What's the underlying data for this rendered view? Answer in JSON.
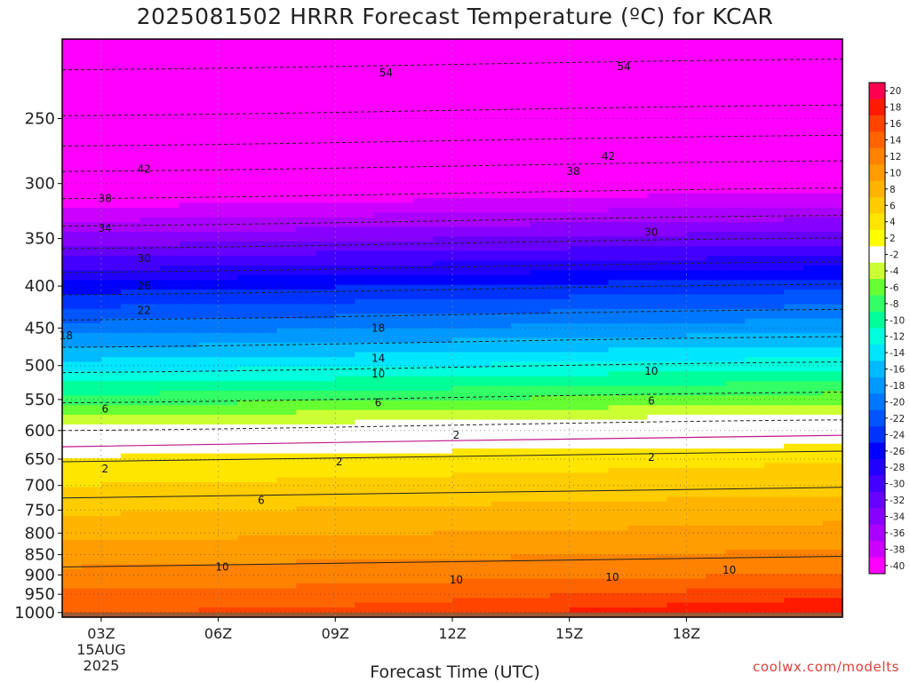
{
  "chart_data": {
    "type": "heatmap",
    "title": "2025081502 HRRR Forecast Temperature (ºC) for KCAR",
    "xlabel": "Forecast Time (UTC)",
    "ylabel": "",
    "x_ticks": [
      "03Z",
      "06Z",
      "09Z",
      "12Z",
      "15Z",
      "18Z"
    ],
    "x_tick_sublabel": [
      "15AUG",
      "2025"
    ],
    "y_axis": {
      "scale": "log",
      "reversed": true,
      "range": [
        200,
        1013
      ],
      "ticks": [
        250,
        300,
        350,
        400,
        450,
        500,
        550,
        600,
        650,
        700,
        750,
        800,
        850,
        900,
        950,
        1000
      ]
    },
    "colorbar_labels": [
      "20",
      "18",
      "16",
      "14",
      "12",
      "10",
      "8",
      "6",
      "4",
      "2",
      "-2",
      "-4",
      "-6",
      "-8",
      "-10",
      "-12",
      "-14",
      "-16",
      "-18",
      "-20",
      "-22",
      "-24",
      "-26",
      "-28",
      "-30",
      "-32",
      "-34",
      "-36",
      "-38",
      "-40"
    ],
    "colorbar_colors": [
      "#ff0050",
      "#ff1a00",
      "#ff4400",
      "#ff6400",
      "#ff8200",
      "#ff9c00",
      "#ffb400",
      "#ffcc00",
      "#ffe600",
      "#ffff00",
      "#ffffff",
      "#ccff33",
      "#66ff33",
      "#33ff66",
      "#00ff99",
      "#00ffdd",
      "#00e6ff",
      "#00bbff",
      "#0099ff",
      "#0077ff",
      "#0055ff",
      "#0033ff",
      "#0000ff",
      "#2200ff",
      "#4400ff",
      "#6600ff",
      "#8800ff",
      "#aa00ff",
      "#cc00ff",
      "#ff00ff"
    ],
    "contour_labels": [
      {
        "text": "54",
        "x_hr": 10.3,
        "p": 220
      },
      {
        "text": "54",
        "x_hr": 16.4,
        "p": 216
      },
      {
        "text": "42",
        "x_hr": 16.0,
        "p": 278
      },
      {
        "text": "42",
        "x_hr": 4.1,
        "p": 288
      },
      {
        "text": "38",
        "x_hr": 3.1,
        "p": 313
      },
      {
        "text": "38",
        "x_hr": 15.1,
        "p": 290
      },
      {
        "text": "34",
        "x_hr": 3.1,
        "p": 340
      },
      {
        "text": "30",
        "x_hr": 4.1,
        "p": 370
      },
      {
        "text": "30",
        "x_hr": 17.1,
        "p": 344
      },
      {
        "text": "26",
        "x_hr": 4.1,
        "p": 400
      },
      {
        "text": "22",
        "x_hr": 4.1,
        "p": 428
      },
      {
        "text": "18",
        "x_hr": 2.1,
        "p": 460
      },
      {
        "text": "18",
        "x_hr": 10.1,
        "p": 450
      },
      {
        "text": "14",
        "x_hr": 10.1,
        "p": 490
      },
      {
        "text": "10",
        "x_hr": 10.1,
        "p": 512
      },
      {
        "text": "10",
        "x_hr": 17.1,
        "p": 508
      },
      {
        "text": "6",
        "x_hr": 3.1,
        "p": 565
      },
      {
        "text": "6",
        "x_hr": 10.1,
        "p": 555
      },
      {
        "text": "6",
        "x_hr": 17.1,
        "p": 552
      },
      {
        "text": "2",
        "x_hr": 12.1,
        "p": 608
      },
      {
        "text": "2",
        "x_hr": 3.1,
        "p": 668
      },
      {
        "text": "2",
        "x_hr": 9.1,
        "p": 655
      },
      {
        "text": "2",
        "x_hr": 17.1,
        "p": 647
      },
      {
        "text": "6",
        "x_hr": 7.1,
        "p": 730
      },
      {
        "text": "10",
        "x_hr": 6.1,
        "p": 880
      },
      {
        "text": "10",
        "x_hr": 12.1,
        "p": 912
      },
      {
        "text": "10",
        "x_hr": 16.1,
        "p": 905
      },
      {
        "text": "10",
        "x_hr": 19.1,
        "p": 888
      }
    ]
  },
  "credit": "coolwx.com/modelts"
}
